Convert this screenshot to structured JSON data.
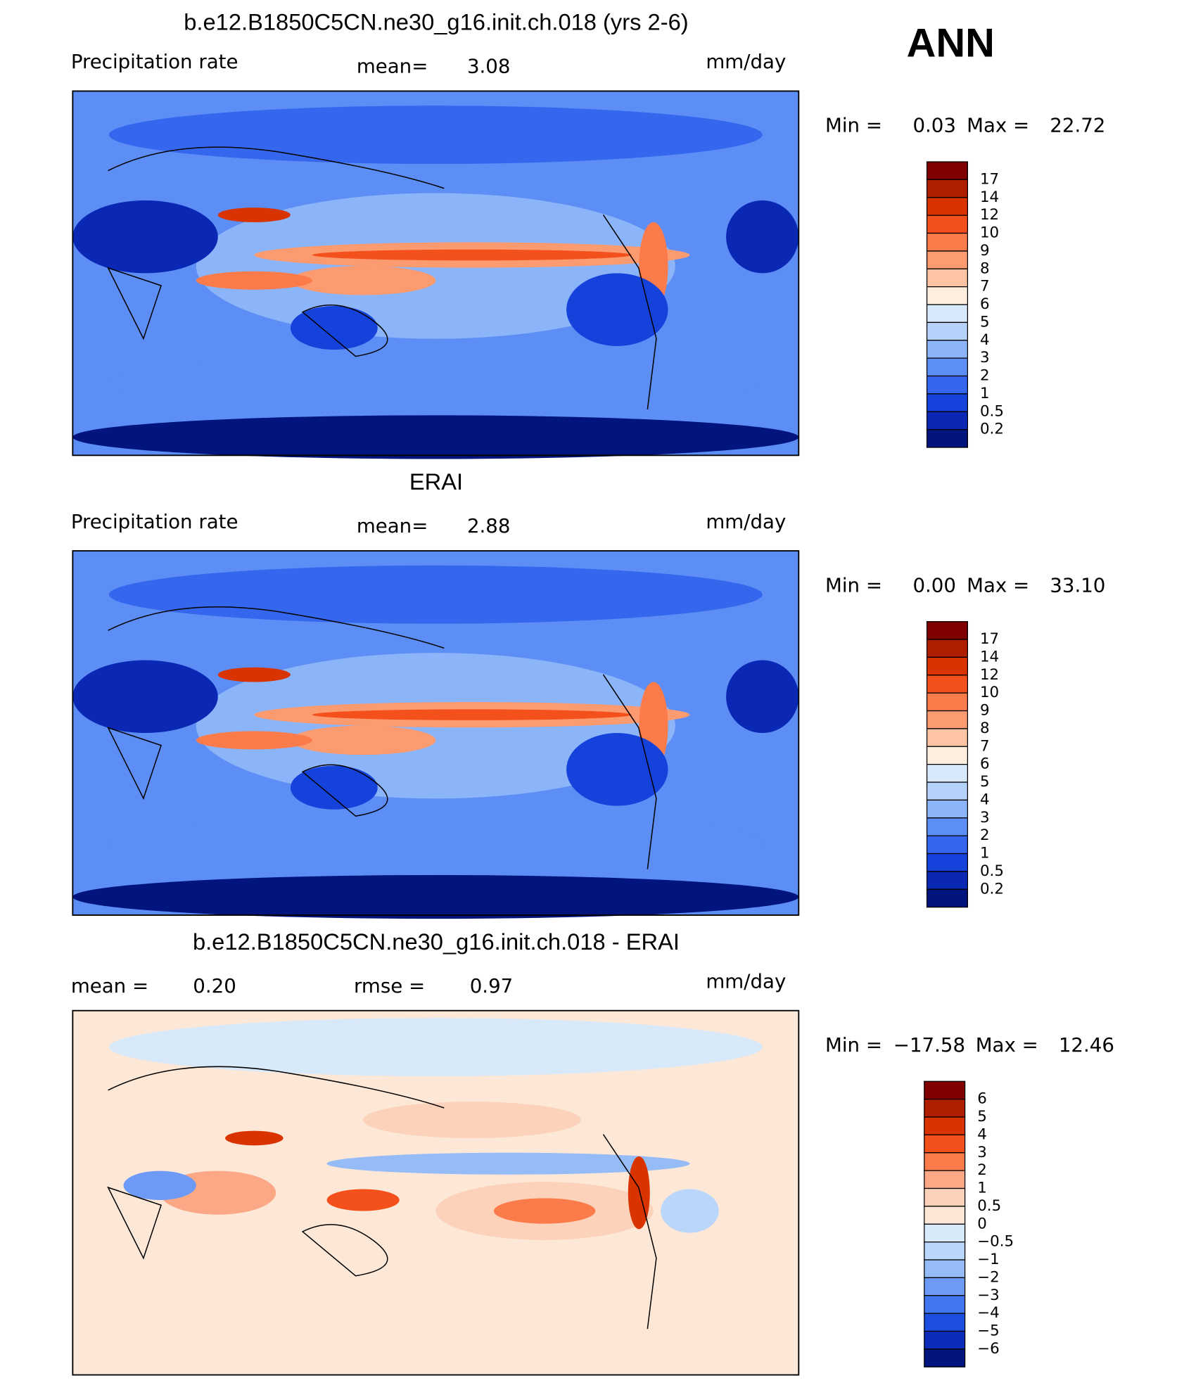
{
  "header": {
    "season": "ANN"
  },
  "panels": [
    {
      "title": "b.e12.B1850C5CN.ne30_g16.init.ch.018 (yrs 2-6)",
      "variable": "Precipitation rate",
      "stat1_label": "mean=",
      "stat1_value": "3.08",
      "units": "mm/day",
      "min_label": "Min =",
      "min_value": "0.03",
      "max_label": "Max =",
      "max_value": "22.72",
      "colorbar": {
        "labels": [
          "17",
          "14",
          "12",
          "10",
          "9",
          "8",
          "7",
          "6",
          "5",
          "4",
          "3",
          "2",
          "1",
          "0.5",
          "0.2"
        ],
        "colors": [
          "#7f0000",
          "#b01e00",
          "#d93300",
          "#f4501c",
          "#fb7c4a",
          "#fc9a70",
          "#fdc4a4",
          "#fdeedd",
          "#d6e8fa",
          "#b4d2fa",
          "#8cb4f8",
          "#5c8ef6",
          "#3466ee",
          "#1642dc",
          "#0a28b4",
          "#02147e"
        ]
      }
    },
    {
      "title": "ERAI",
      "variable": "Precipitation rate",
      "stat1_label": "mean=",
      "stat1_value": "2.88",
      "units": "mm/day",
      "min_label": "Min =",
      "min_value": "0.00",
      "max_label": "Max =",
      "max_value": "33.10",
      "colorbar": {
        "labels": [
          "17",
          "14",
          "12",
          "10",
          "9",
          "8",
          "7",
          "6",
          "5",
          "4",
          "3",
          "2",
          "1",
          "0.5",
          "0.2"
        ],
        "colors": [
          "#7f0000",
          "#b01e00",
          "#d93300",
          "#f4501c",
          "#fb7c4a",
          "#fc9a70",
          "#fdc4a4",
          "#fdeedd",
          "#d6e8fa",
          "#b4d2fa",
          "#8cb4f8",
          "#5c8ef6",
          "#3466ee",
          "#1642dc",
          "#0a28b4",
          "#02147e"
        ]
      }
    },
    {
      "title": "b.e12.B1850C5CN.ne30_g16.init.ch.018 - ERAI",
      "stat1_label": "mean =",
      "stat1_value": "0.20",
      "stat2_label": "rmse =",
      "stat2_value": "0.97",
      "units": "mm/day",
      "min_label": "Min =",
      "min_value": "−17.58",
      "max_label": "Max =",
      "max_value": "12.46",
      "colorbar": {
        "labels": [
          "6",
          "5",
          "4",
          "3",
          "2",
          "1",
          "0.5",
          "0",
          "−0.5",
          "−1",
          "−2",
          "−3",
          "−4",
          "−5",
          "−6"
        ],
        "colors": [
          "#7f0000",
          "#b01e00",
          "#d93300",
          "#f4501c",
          "#fb7c4a",
          "#fca886",
          "#fcd2ba",
          "#fde8d8",
          "#d8e9fa",
          "#bad6fa",
          "#96bcf8",
          "#6c9af6",
          "#4276f0",
          "#1c4fe0",
          "#0a2cb8",
          "#02147e"
        ]
      }
    }
  ]
}
